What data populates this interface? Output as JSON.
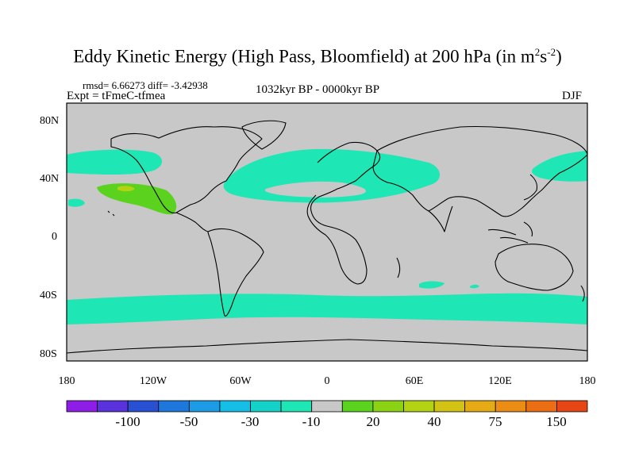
{
  "title": {
    "main": "Eddy Kinetic Energy (High Pass, Bloomfield) at 200 hPa (in m",
    "exp1": "2",
    "mid": "s",
    "exp2": "-2",
    "end": ")"
  },
  "stats": {
    "rmsd": "rmsd= 6.66273 diff= -3.42938",
    "experiment": "Expt = tFmeC-tfmea",
    "period": "1032kyr BP - 0000kyr BP",
    "season": "DJF"
  },
  "axes": {
    "y_labels": [
      "80N",
      "40N",
      "0",
      "40S",
      "80S"
    ],
    "x_labels": [
      "180",
      "120W",
      "60W",
      "0",
      "60E",
      "120E",
      "180"
    ]
  },
  "colorbar": {
    "labels": [
      "-100",
      "-50",
      "-30",
      "-10",
      "20",
      "40",
      "75",
      "150"
    ],
    "colors": [
      "#8e1ee6",
      "#5a32dc",
      "#2850d2",
      "#1e78dc",
      "#1e9be6",
      "#14bee6",
      "#14d2c8",
      "#1ee6b4",
      "#c8c8c8",
      "#5ad21e",
      "#8cd214",
      "#b4d214",
      "#d2c314",
      "#e6aa14",
      "#eb8c14",
      "#eb6e14",
      "#e64614"
    ]
  },
  "map": {
    "background": "#c8c8c8",
    "anomaly_colors": {
      "cyan": "#1ee6b4",
      "green": "#5ad21e",
      "yellow": "#b4d214"
    }
  }
}
